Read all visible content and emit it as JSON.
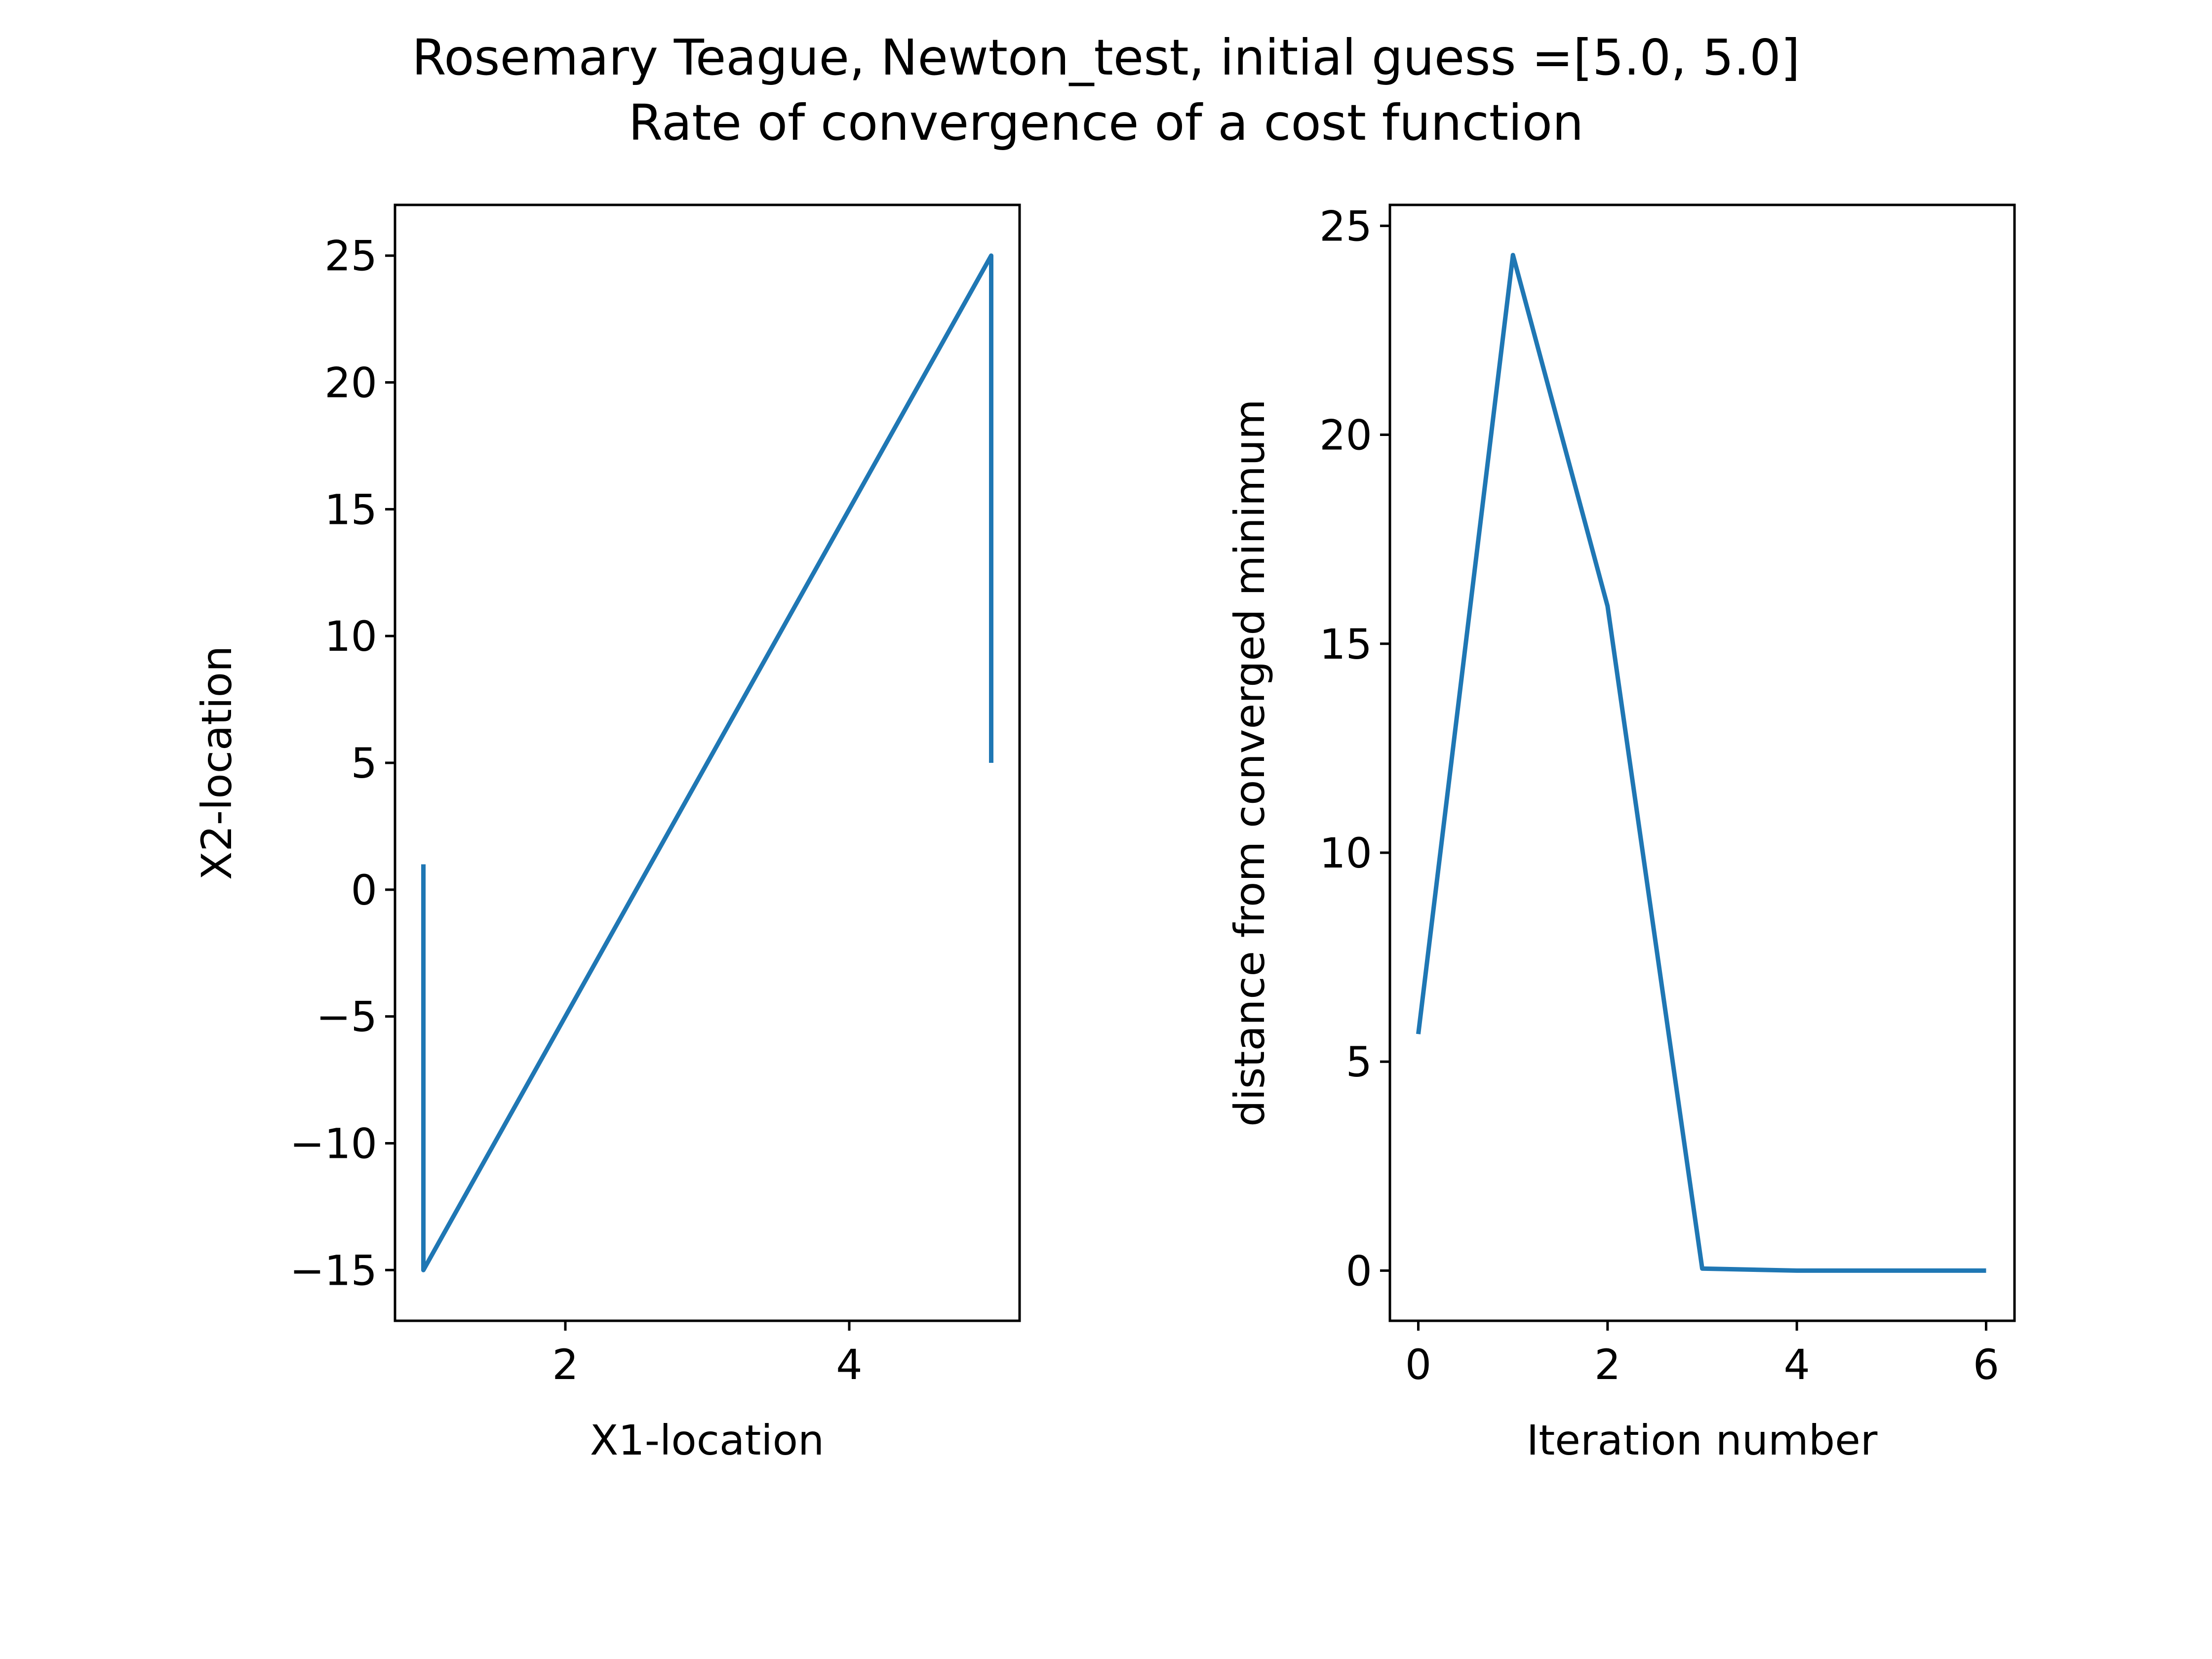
{
  "figure": {
    "title_line1": "Rosemary Teague, Newton_test, initial guess =[5.0, 5.0]",
    "title_line2": "Rate of convergence of a cost function"
  },
  "colors": {
    "series": "#1f77b4",
    "axes": "#000000",
    "background": "#ffffff"
  },
  "chart_data": [
    {
      "type": "line",
      "title": "",
      "xlabel": "X1-location",
      "ylabel": "X2-location",
      "xlim": [
        0.8,
        5.2
      ],
      "ylim": [
        -17,
        27
      ],
      "xticks": [
        2,
        4
      ],
      "xtick_labels": [
        "2",
        "4"
      ],
      "yticks": [
        -15,
        -10,
        -5,
        0,
        5,
        10,
        15,
        20,
        25
      ],
      "ytick_labels": [
        "−15",
        "−10",
        "−5",
        "0",
        "5",
        "10",
        "15",
        "20",
        "25"
      ],
      "grid": false,
      "series": [
        {
          "x": [
            5.0,
            5.0,
            1.0,
            1.0
          ],
          "y": [
            5.0,
            25.0,
            -15.0,
            1.0
          ]
        }
      ]
    },
    {
      "type": "line",
      "title": "",
      "xlabel": "Iteration number",
      "ylabel": "distance from converged minimum",
      "xlim": [
        -0.3,
        6.3
      ],
      "ylim": [
        -1.2,
        25.5
      ],
      "xticks": [
        0,
        2,
        4,
        6
      ],
      "xtick_labels": [
        "0",
        "2",
        "4",
        "6"
      ],
      "yticks": [
        0,
        5,
        10,
        15,
        20,
        25
      ],
      "ytick_labels": [
        "0",
        "5",
        "10",
        "15",
        "20",
        "25"
      ],
      "grid": false,
      "series": [
        {
          "x": [
            0,
            1,
            2,
            3,
            4,
            5,
            6
          ],
          "y": [
            5.66,
            24.3,
            15.9,
            0.05,
            0.0,
            0.0,
            0.0
          ]
        }
      ]
    }
  ]
}
